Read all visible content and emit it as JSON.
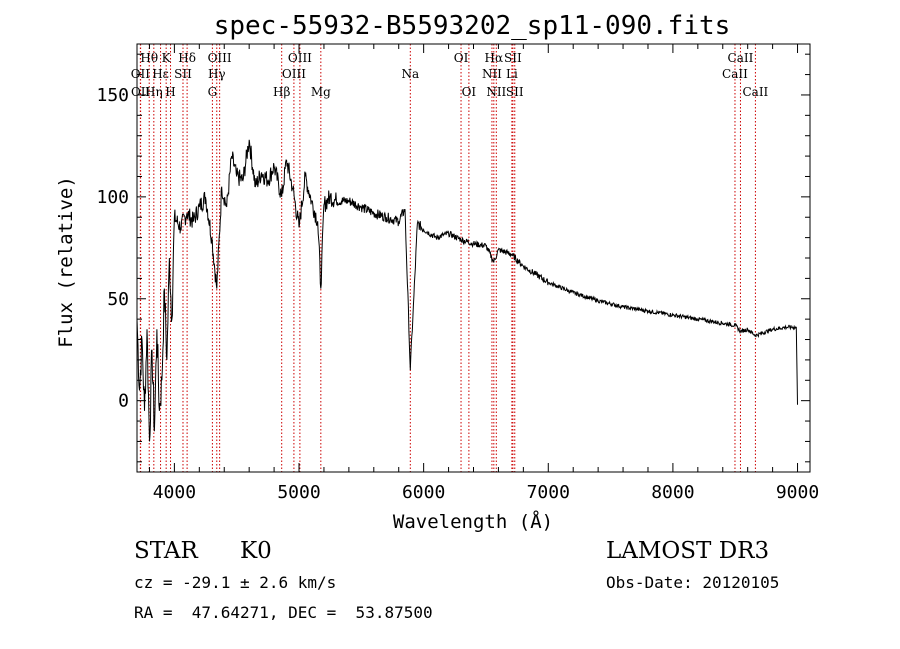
{
  "chart_data": {
    "type": "line",
    "title": "spec-55932-B5593202_sp11-090.fits",
    "xlabel": "Wavelength (Å)",
    "ylabel": "Flux (relative)",
    "xlim": [
      3700,
      9100
    ],
    "ylim": [
      -35,
      175
    ],
    "xticks": [
      4000,
      5000,
      6000,
      7000,
      8000,
      9000
    ],
    "yticks": [
      0,
      50,
      100,
      150
    ],
    "series": [
      {
        "name": "flux",
        "x": [
          3700,
          3720,
          3740,
          3760,
          3780,
          3800,
          3820,
          3840,
          3860,
          3880,
          3900,
          3920,
          3940,
          3960,
          3980,
          4000,
          4050,
          4100,
          4150,
          4200,
          4250,
          4300,
          4340,
          4380,
          4420,
          4460,
          4500,
          4550,
          4600,
          4650,
          4700,
          4750,
          4800,
          4861,
          4900,
          4950,
          5000,
          5050,
          5100,
          5150,
          5175,
          5200,
          5250,
          5300,
          5400,
          5500,
          5600,
          5700,
          5800,
          5850,
          5893,
          5950,
          6000,
          6100,
          6200,
          6300,
          6400,
          6500,
          6563,
          6600,
          6700,
          6800,
          6900,
          7000,
          7200,
          7400,
          7600,
          7800,
          8000,
          8200,
          8400,
          8500,
          8542,
          8600,
          8662,
          8800,
          8900,
          8990,
          9000
        ],
        "y": [
          40,
          5,
          30,
          -5,
          35,
          -20,
          25,
          -15,
          35,
          -5,
          10,
          55,
          20,
          70,
          40,
          90,
          85,
          92,
          88,
          95,
          100,
          80,
          55,
          105,
          95,
          120,
          110,
          108,
          128,
          105,
          112,
          108,
          115,
          100,
          118,
          104,
          85,
          110,
          98,
          88,
          55,
          96,
          100,
          98,
          98,
          95,
          92,
          90,
          88,
          94,
          15,
          87,
          84,
          80,
          82,
          79,
          77,
          76,
          68,
          74,
          72,
          66,
          62,
          58,
          53,
          49,
          46,
          44,
          42,
          40,
          38,
          37,
          34,
          35,
          32,
          35,
          36,
          36,
          -2
        ]
      }
    ],
    "spectral_lines": [
      {
        "label": "Hθ",
        "wavelength": 3798,
        "row": 1
      },
      {
        "label": "K",
        "wavelength": 3934,
        "row": 1
      },
      {
        "label": "Hδ",
        "wavelength": 4102,
        "row": 1
      },
      {
        "label": "OIII",
        "wavelength": 4363,
        "row": 1
      },
      {
        "label": "OIII",
        "wavelength": 5007,
        "row": 1
      },
      {
        "label": "OI",
        "wavelength": 6300,
        "row": 1
      },
      {
        "label": "Hα",
        "wavelength": 6563,
        "row": 1
      },
      {
        "label": "SII",
        "wavelength": 6716,
        "row": 1
      },
      {
        "label": "CaII",
        "wavelength": 8542,
        "row": 1
      },
      {
        "label": "OII",
        "wavelength": 3727,
        "row": 2
      },
      {
        "label": "Hε",
        "wavelength": 3889,
        "row": 2
      },
      {
        "label": "SII",
        "wavelength": 4069,
        "row": 2
      },
      {
        "label": "Hγ",
        "wavelength": 4340,
        "row": 2
      },
      {
        "label": "OIII",
        "wavelength": 4959,
        "row": 2
      },
      {
        "label": "Na",
        "wavelength": 5893,
        "row": 2
      },
      {
        "label": "NII",
        "wavelength": 6548,
        "row": 2
      },
      {
        "label": "Li",
        "wavelength": 6708,
        "row": 2
      },
      {
        "label": "CaII",
        "wavelength": 8498,
        "row": 2
      },
      {
        "label": "OII",
        "wavelength": 3729,
        "row": 3
      },
      {
        "label": "Hη",
        "wavelength": 3835,
        "row": 3
      },
      {
        "label": "H",
        "wavelength": 3969,
        "row": 3
      },
      {
        "label": "G",
        "wavelength": 4305,
        "row": 3
      },
      {
        "label": "Hβ",
        "wavelength": 4861,
        "row": 3
      },
      {
        "label": "Mg",
        "wavelength": 5175,
        "row": 3
      },
      {
        "label": "OI",
        "wavelength": 6363,
        "row": 3
      },
      {
        "label": "NII",
        "wavelength": 6583,
        "row": 3
      },
      {
        "label": "SII",
        "wavelength": 6731,
        "row": 3
      },
      {
        "label": "CaII",
        "wavelength": 8662,
        "row": 3
      }
    ],
    "line_color": "#000000",
    "marker_color": "#cc0000"
  },
  "info": {
    "class": "STAR",
    "subclass": "K0",
    "survey": "LAMOST DR3",
    "cz": "cz = -29.1 ± 2.6 km/s",
    "obs_date": "Obs-Date: 20120105",
    "coords": "RA =  47.64271, DEC =  53.87500"
  }
}
